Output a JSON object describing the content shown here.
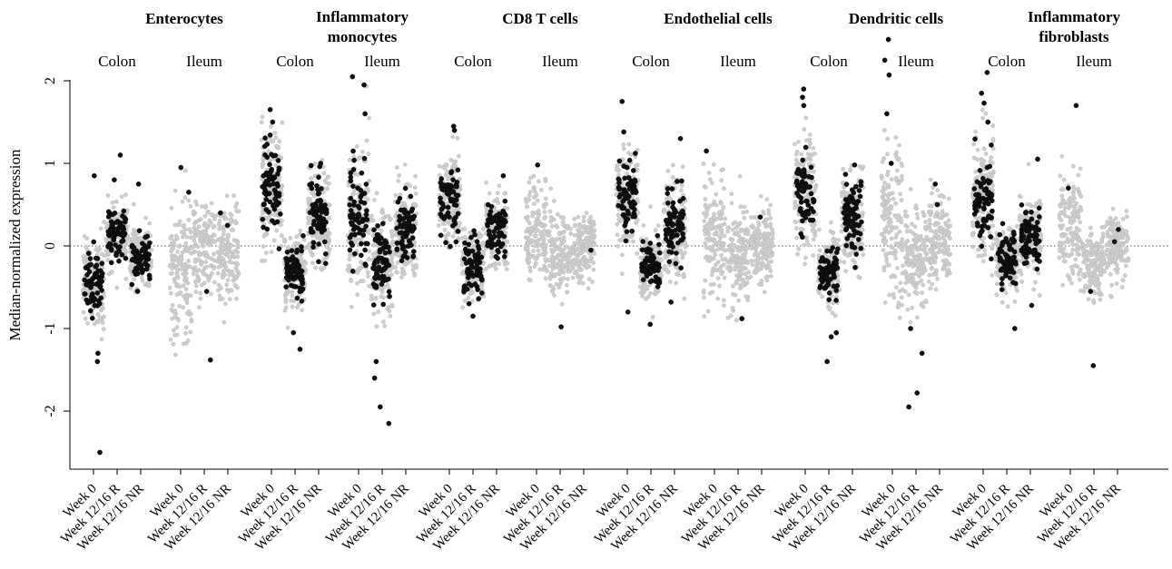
{
  "chart_data": {
    "type": "scatter",
    "ylabel": "Median-normalized expression",
    "y_ticks": [
      2,
      1,
      0,
      -1,
      -2
    ],
    "y_tick_labels": [
      "2",
      "1",
      "0",
      "-1",
      "-2"
    ],
    "ylim": [
      -2.7,
      2.1
    ],
    "reference_line": 0,
    "categories": [
      "Week 0",
      "Week 12/16 R",
      "Week 12/16 NR"
    ],
    "tissues": [
      "Colon",
      "Ileum"
    ],
    "colors": {
      "background_points": "#cfcfcf",
      "highlighted_points": "#111111"
    },
    "panels": [
      {
        "title_lines": [
          "Enterocytes"
        ],
        "groups": [
          {
            "tissue": "Colon",
            "series": [
              {
                "category": "Week 0",
                "highlight": "low",
                "median": -0.45,
                "spread": 0.28,
                "min": -1.6,
                "max": 0.9,
                "extremes": [
                  -2.5,
                  -1.4,
                  0.85,
                  -1.3
                ]
              },
              {
                "category": "Week 12/16 R",
                "highlight": "high",
                "median": 0.12,
                "spread": 0.18,
                "min": -0.6,
                "max": 0.9,
                "extremes": [
                  1.1,
                  0.8
                ]
              },
              {
                "category": "Week 12/16 NR",
                "highlight": "mid",
                "median": -0.15,
                "spread": 0.2,
                "min": -0.7,
                "max": 0.9,
                "extremes": [
                  0.75
                ]
              }
            ]
          },
          {
            "tissue": "Ileum",
            "series": [
              {
                "category": "Week 0",
                "highlight": "none",
                "median": -0.35,
                "spread": 0.4,
                "min": -2.0,
                "max": 1.2,
                "extremes": [
                  0.95,
                  0.65
                ]
              },
              {
                "category": "Week 12/16 R",
                "highlight": "none",
                "median": 0.0,
                "spread": 0.3,
                "min": -1.3,
                "max": 1.4,
                "extremes": [
                  -1.38,
                  -0.55
                ]
              },
              {
                "category": "Week 12/16 NR",
                "highlight": "none",
                "median": -0.1,
                "spread": 0.3,
                "min": -1.9,
                "max": 1.2,
                "extremes": [
                  0.4,
                  0.25
                ]
              }
            ]
          }
        ]
      },
      {
        "title_lines": [
          "Inflammatory",
          "monocytes"
        ],
        "groups": [
          {
            "tissue": "Colon",
            "series": [
              {
                "category": "Week 0",
                "highlight": "high",
                "median": 0.7,
                "spread": 0.35,
                "min": -0.2,
                "max": 1.6,
                "extremes": [
                  1.65,
                  1.5
                ]
              },
              {
                "category": "Week 12/16 R",
                "highlight": "low",
                "median": -0.3,
                "spread": 0.22,
                "min": -1.2,
                "max": 0.6,
                "extremes": [
                  -1.25,
                  -1.05
                ]
              },
              {
                "category": "Week 12/16 NR",
                "highlight": "high",
                "median": 0.35,
                "spread": 0.3,
                "min": -0.3,
                "max": 1.05,
                "extremes": [
                  1.0
                ]
              }
            ]
          },
          {
            "tissue": "Ileum",
            "series": [
              {
                "category": "Week 0",
                "highlight": "high",
                "median": 0.3,
                "spread": 0.5,
                "min": -0.8,
                "max": 2.0,
                "extremes": [
                  2.05,
                  1.95,
                  1.6
                ]
              },
              {
                "category": "Week 12/16 R",
                "highlight": "low",
                "median": -0.2,
                "spread": 0.3,
                "min": -1.0,
                "max": 0.7,
                "extremes": [
                  -2.15,
                  -1.95,
                  -1.6,
                  -1.4
                ]
              },
              {
                "category": "Week 12/16 NR",
                "highlight": "high",
                "median": 0.2,
                "spread": 0.3,
                "min": -0.4,
                "max": 1.1,
                "extremes": [
                  0.6
                ]
              }
            ]
          }
        ]
      },
      {
        "title_lines": [
          "CD8 T cells"
        ],
        "groups": [
          {
            "tissue": "Colon",
            "series": [
              {
                "category": "Week 0",
                "highlight": "high",
                "median": 0.55,
                "spread": 0.3,
                "min": -0.2,
                "max": 1.45,
                "extremes": [
                  1.45,
                  1.4
                ]
              },
              {
                "category": "Week 12/16 R",
                "highlight": "low",
                "median": -0.25,
                "spread": 0.22,
                "min": -0.85,
                "max": 0.4,
                "extremes": [
                  -0.85,
                  -0.7
                ]
              },
              {
                "category": "Week 12/16 NR",
                "highlight": "mid",
                "median": 0.2,
                "spread": 0.25,
                "min": -0.3,
                "max": 0.85,
                "extremes": [
                  0.85
                ]
              }
            ]
          },
          {
            "tissue": "Ileum",
            "series": [
              {
                "category": "Week 0",
                "highlight": "none",
                "median": 0.15,
                "spread": 0.3,
                "min": -1.0,
                "max": 1.5,
                "extremes": [
                  0.98
                ]
              },
              {
                "category": "Week 12/16 R",
                "highlight": "none",
                "median": -0.1,
                "spread": 0.25,
                "min": -1.0,
                "max": 0.7,
                "extremes": [
                  -0.98
                ]
              },
              {
                "category": "Week 12/16 NR",
                "highlight": "none",
                "median": 0.0,
                "spread": 0.2,
                "min": -0.6,
                "max": 0.7,
                "extremes": [
                  -0.05
                ]
              }
            ]
          }
        ]
      },
      {
        "title_lines": [
          "Endothelial cells"
        ],
        "groups": [
          {
            "tissue": "Colon",
            "series": [
              {
                "category": "Week 0",
                "highlight": "high",
                "median": 0.6,
                "spread": 0.3,
                "min": -0.8,
                "max": 1.4,
                "extremes": [
                  1.75,
                  1.38,
                  -0.8
                ]
              },
              {
                "category": "Week 12/16 R",
                "highlight": "low",
                "median": -0.25,
                "spread": 0.22,
                "min": -0.95,
                "max": 0.6,
                "extremes": [
                  -0.95
                ]
              },
              {
                "category": "Week 12/16 NR",
                "highlight": "mid",
                "median": 0.2,
                "spread": 0.3,
                "min": -0.7,
                "max": 1.3,
                "extremes": [
                  1.3,
                  -0.68
                ]
              }
            ]
          },
          {
            "tissue": "Ileum",
            "series": [
              {
                "category": "Week 0",
                "highlight": "none",
                "median": 0.1,
                "spread": 0.35,
                "min": -1.1,
                "max": 1.5,
                "extremes": [
                  1.15
                ]
              },
              {
                "category": "Week 12/16 R",
                "highlight": "none",
                "median": -0.15,
                "spread": 0.28,
                "min": -1.1,
                "max": 0.9,
                "extremes": [
                  -0.88
                ]
              },
              {
                "category": "Week 12/16 NR",
                "highlight": "none",
                "median": 0.0,
                "spread": 0.22,
                "min": -0.6,
                "max": 0.7,
                "extremes": [
                  0.35
                ]
              }
            ]
          }
        ]
      },
      {
        "title_lines": [
          "Dendritic cells"
        ],
        "groups": [
          {
            "tissue": "Colon",
            "series": [
              {
                "category": "Week 0",
                "highlight": "high",
                "median": 0.65,
                "spread": 0.35,
                "min": -0.5,
                "max": 1.9,
                "extremes": [
                  1.9,
                  1.8,
                  1.7
                ]
              },
              {
                "category": "Week 12/16 R",
                "highlight": "low",
                "median": -0.3,
                "spread": 0.2,
                "min": -1.4,
                "max": 0.4,
                "extremes": [
                  -1.4,
                  -1.1,
                  -1.05
                ]
              },
              {
                "category": "Week 12/16 NR",
                "highlight": "mid",
                "median": 0.35,
                "spread": 0.3,
                "min": -0.4,
                "max": 1.0,
                "extremes": [
                  0.98
                ]
              }
            ]
          },
          {
            "tissue": "Ileum",
            "series": [
              {
                "category": "Week 0",
                "highlight": "none",
                "median": 0.3,
                "spread": 0.5,
                "min": -1.2,
                "max": 2.0,
                "extremes": [
                  2.5,
                  2.25,
                  2.07,
                  1.6,
                  1.0
                ]
              },
              {
                "category": "Week 12/16 R",
                "highlight": "none",
                "median": -0.15,
                "spread": 0.3,
                "min": -1.0,
                "max": 1.0,
                "extremes": [
                  -1.95,
                  -1.78,
                  -1.3,
                  -1.0
                ]
              },
              {
                "category": "Week 12/16 NR",
                "highlight": "none",
                "median": 0.1,
                "spread": 0.28,
                "min": -0.6,
                "max": 1.1,
                "extremes": [
                  0.75,
                  0.5
                ]
              }
            ]
          }
        ]
      },
      {
        "title_lines": [
          "Inflammatory",
          "fibroblasts"
        ],
        "groups": [
          {
            "tissue": "Colon",
            "series": [
              {
                "category": "Week 0",
                "highlight": "high",
                "median": 0.6,
                "spread": 0.4,
                "min": -0.4,
                "max": 1.9,
                "extremes": [
                  2.1,
                  1.85,
                  1.73,
                  1.5
                ]
              },
              {
                "category": "Week 12/16 R",
                "highlight": "low",
                "median": -0.15,
                "spread": 0.22,
                "min": -1.0,
                "max": 0.6,
                "extremes": [
                  -1.0
                ]
              },
              {
                "category": "Week 12/16 NR",
                "highlight": "mid",
                "median": 0.1,
                "spread": 0.25,
                "min": -0.7,
                "max": 1.05,
                "extremes": [
                  1.05,
                  -0.72
                ]
              }
            ]
          },
          {
            "tissue": "Ileum",
            "series": [
              {
                "category": "Week 0",
                "highlight": "none",
                "median": 0.25,
                "spread": 0.35,
                "min": -0.7,
                "max": 1.9,
                "extremes": [
                  1.7,
                  0.7
                ]
              },
              {
                "category": "Week 12/16 R",
                "highlight": "none",
                "median": -0.25,
                "spread": 0.2,
                "min": -1.45,
                "max": 0.5,
                "extremes": [
                  -1.45,
                  -0.55
                ]
              },
              {
                "category": "Week 12/16 NR",
                "highlight": "none",
                "median": 0.0,
                "spread": 0.2,
                "min": -0.8,
                "max": 0.9,
                "extremes": [
                  0.2,
                  0.05
                ]
              }
            ]
          }
        ]
      }
    ]
  }
}
